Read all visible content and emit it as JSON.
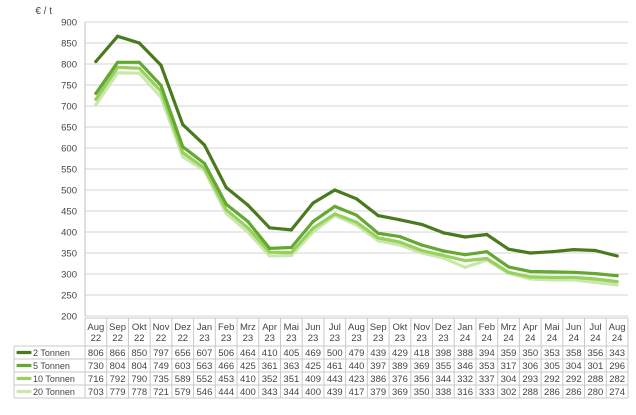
{
  "chart_data": {
    "type": "line",
    "title": "",
    "ylabel": "€ / t",
    "xlabel": "",
    "ylim": [
      200,
      900
    ],
    "yticks": [
      200,
      250,
      300,
      350,
      400,
      450,
      500,
      550,
      600,
      650,
      700,
      750,
      800,
      850,
      900
    ],
    "grid": true,
    "legend": "data-table",
    "categories": [
      [
        "Aug",
        "22"
      ],
      [
        "Sep",
        "22"
      ],
      [
        "Okt",
        "22"
      ],
      [
        "Nov",
        "22"
      ],
      [
        "Dez",
        "22"
      ],
      [
        "Jan",
        "23"
      ],
      [
        "Feb",
        "23"
      ],
      [
        "Mrz",
        "23"
      ],
      [
        "Apr",
        "23"
      ],
      [
        "Mai",
        "23"
      ],
      [
        "Jun",
        "23"
      ],
      [
        "Jul",
        "23"
      ],
      [
        "Aug",
        "23"
      ],
      [
        "Sep",
        "23"
      ],
      [
        "Okt",
        "23"
      ],
      [
        "Nov",
        "23"
      ],
      [
        "Dez",
        "23"
      ],
      [
        "Jan",
        "24"
      ],
      [
        "Feb",
        "24"
      ],
      [
        "Mrz",
        "24"
      ],
      [
        "Apr",
        "24"
      ],
      [
        "Mai",
        "24"
      ],
      [
        "Jun",
        "24"
      ],
      [
        "Jul",
        "24"
      ],
      [
        "Aug",
        "24"
      ]
    ],
    "series": [
      {
        "name": "2 Tonnen",
        "color": "#4a7a1e",
        "values": [
          806,
          866,
          850,
          797,
          656,
          607,
          506,
          464,
          410,
          405,
          469,
          500,
          479,
          439,
          429,
          418,
          398,
          388,
          394,
          359,
          350,
          353,
          358,
          356,
          343
        ]
      },
      {
        "name": "5 Tonnen",
        "color": "#63a830",
        "values": [
          730,
          804,
          804,
          749,
          603,
          563,
          466,
          425,
          361,
          363,
          425,
          461,
          440,
          397,
          389,
          369,
          355,
          346,
          353,
          317,
          306,
          305,
          304,
          301,
          296
        ]
      },
      {
        "name": "10 Tonnen",
        "color": "#98d060",
        "values": [
          716,
          792,
          790,
          735,
          589,
          552,
          453,
          410,
          352,
          351,
          409,
          443,
          423,
          386,
          376,
          356,
          344,
          332,
          337,
          304,
          293,
          292,
          292,
          288,
          282
        ]
      },
      {
        "name": "20 Tonnen",
        "color": "#cbe8ac",
        "values": [
          703,
          779,
          778,
          721,
          579,
          546,
          444,
          400,
          343,
          344,
          400,
          439,
          417,
          379,
          369,
          350,
          338,
          316,
          333,
          302,
          288,
          286,
          286,
          280,
          274
        ]
      }
    ]
  }
}
